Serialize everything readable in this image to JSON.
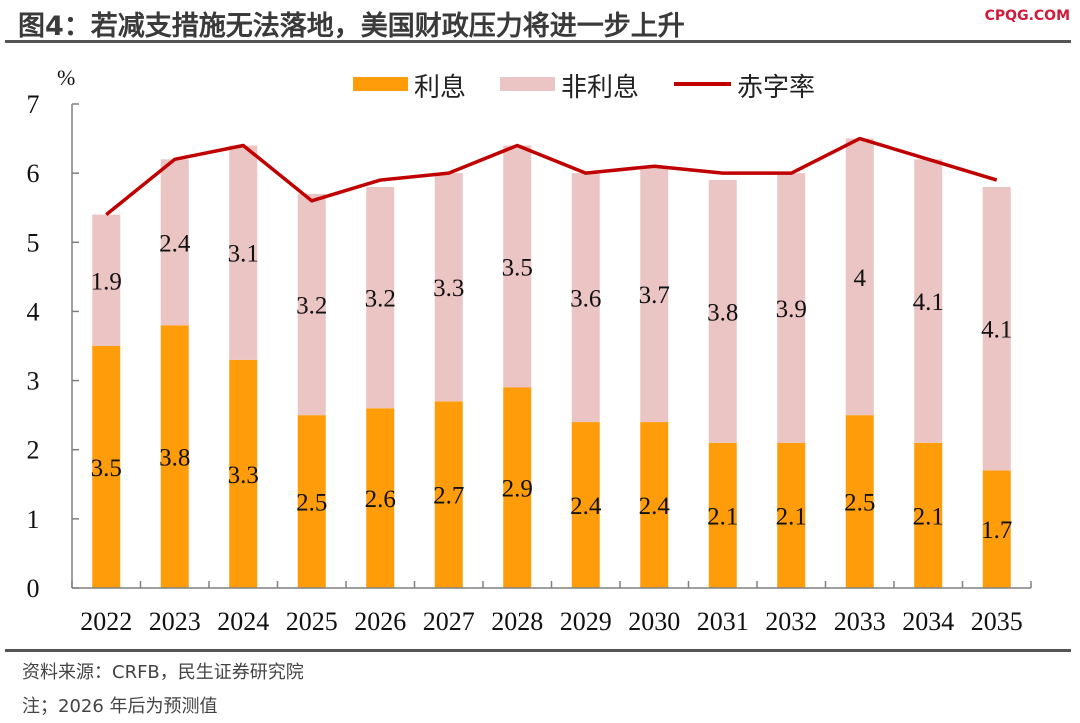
{
  "header": {
    "title": "图4：若减支措施无法落地，美国财政压力将进一步上升",
    "brand": "CPQG.COM"
  },
  "footer": {
    "source": "资料来源：CRFB，民生证券研究院",
    "note": "注；2026 年后为预测值"
  },
  "colors": {
    "interest": "#FF9C0A",
    "non_interest": "#EBC4C4",
    "deficit": "#C00000",
    "axis": "#808080"
  },
  "chart_data": {
    "type": "bar",
    "stacked": true,
    "title": "若减支措施无法落地，美国财政压力将进一步上升",
    "xlabel": "",
    "ylabel": "%",
    "ylim": [
      0,
      7
    ],
    "yticks": [
      0,
      1,
      2,
      3,
      4,
      5,
      6,
      7
    ],
    "grid": false,
    "legend_position": "top-center",
    "categories": [
      "2022",
      "2023",
      "2024",
      "2025",
      "2026",
      "2027",
      "2028",
      "2029",
      "2030",
      "2031",
      "2032",
      "2033",
      "2034",
      "2035"
    ],
    "series": [
      {
        "name": "利息",
        "type": "bar",
        "values": [
          3.5,
          3.8,
          3.3,
          2.5,
          2.6,
          2.7,
          2.9,
          2.4,
          2.4,
          2.1,
          2.1,
          2.5,
          2.1,
          1.7
        ]
      },
      {
        "name": "非利息",
        "type": "bar",
        "values": [
          1.9,
          2.4,
          3.1,
          3.2,
          3.2,
          3.3,
          3.5,
          3.6,
          3.7,
          3.8,
          3.9,
          4,
          4.1,
          4.1
        ]
      },
      {
        "name": "赤字率",
        "type": "line",
        "values": [
          5.4,
          6.2,
          6.4,
          5.6,
          5.9,
          6.0,
          6.4,
          6.0,
          6.1,
          6.0,
          6.0,
          6.5,
          6.2,
          5.9
        ]
      }
    ]
  }
}
